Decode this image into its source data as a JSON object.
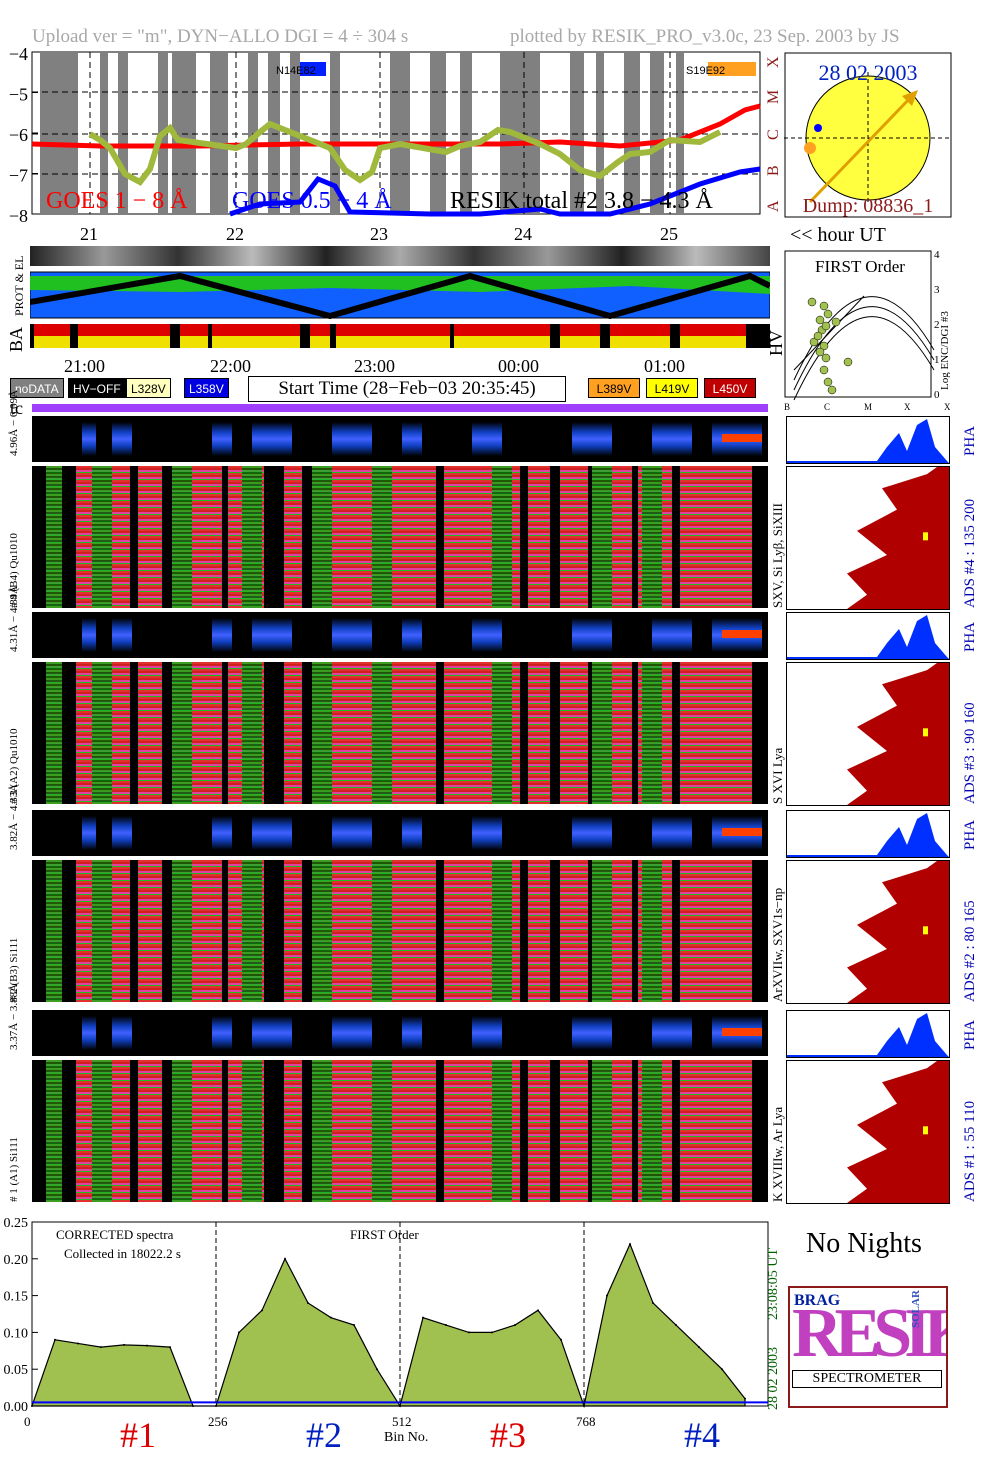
{
  "header": {
    "left": "Upload ver = \"m\", DYN−ALLO DGI =   4 ÷ 304 s",
    "right": "plotted by RESIK_PRO_v3.0c, 23 Sep. 2003 by JS"
  },
  "goes_panel": {
    "yticks": [
      "−4",
      "−5",
      "−6",
      "−7",
      "−8"
    ],
    "class_letters": [
      "X",
      "M",
      "C",
      "B",
      "A"
    ],
    "legend_goes_long": "GOES 1 − 8 Å",
    "legend_goes_short": "GOES 0.5 − 4 Å",
    "legend_resik": "RESIK total #2  3.8 − 4.3 Å",
    "region_left": "N14E82",
    "region_right": "S19E92",
    "colors": {
      "goes_long": "#ff0000",
      "goes_short": "#0000ff",
      "resik": "#a0b83c",
      "night": "#808080"
    }
  },
  "sun_panel": {
    "date": "28 02 2003",
    "dump": "Dump: 08836_1"
  },
  "orbit_axis": {
    "hour_ticks": [
      "21",
      "22",
      "23",
      "24",
      "25"
    ],
    "hour_label": "<< hour UT"
  },
  "prot_panel": {
    "label": "PROT & EL"
  },
  "ba_panel": {
    "label": "BA"
  },
  "hv_label": "HV",
  "time_axis": {
    "ticks": [
      "21:00",
      "22:00",
      "23:00",
      "00:00",
      "01:00"
    ]
  },
  "hv_legend": {
    "items": [
      {
        "text": "noDATA",
        "bg": "#808080",
        "fg": "#ffffff"
      },
      {
        "text": "HV−OFF",
        "bg": "#000000",
        "fg": "#ffffff"
      },
      {
        "text": "L328V",
        "bg": "#ffffc0",
        "fg": "#000000"
      },
      {
        "text": "L358V",
        "bg": "#0000e0",
        "fg": "#ffffff"
      }
    ],
    "items_right": [
      {
        "text": "L389V",
        "bg": "#ffa020",
        "fg": "#000000"
      },
      {
        "text": "L419V",
        "bg": "#ffff00",
        "fg": "#000000"
      },
      {
        "text": "L450V",
        "bg": "#c00000",
        "fg": "#ffffff"
      }
    ],
    "start_time": "Start Time (28−Feb−03 20:35:45)"
  },
  "tc_label": "tc",
  "first_order": {
    "title": "FIRST Order",
    "ylabel": "Log ENC/DGI #3",
    "yticks": [
      "4",
      "3",
      "2",
      "1",
      "0"
    ],
    "xticks": [
      "B",
      "C",
      "M",
      "X",
      "X10"
    ]
  },
  "channels": [
    {
      "pha_left": "4.96Å − 6.09Å",
      "left": "# 4 (B4) Qu1010",
      "line": "SXV, Si Lyβ, SiXIII",
      "ads": "ADS #4 :   135 200",
      "pha": "PHA"
    },
    {
      "pha_left": "4.31Å − 4.89Å",
      "left": "# 3 (A2) Qu1010",
      "line": "S XVI Lya",
      "ads": "ADS #3 :    90 160",
      "pha": "PHA"
    },
    {
      "pha_left": "3.82Å − 4.33Å",
      "left": "# 2 (B3) Si111",
      "line": "ArXVIIw, SXV1s−np",
      "ads": "ADS #2 :    80 165",
      "pha": "PHA"
    },
    {
      "pha_left": "3.37Å − 3.88Å",
      "left": "# 1 (A1) Si111",
      "line": "K XVIIIw, Ar Lya",
      "ads": "ADS #1 :    55 110",
      "pha": "PHA"
    }
  ],
  "spectrum": {
    "title": "CORRECTED spectra",
    "collected": "Collected in 18022.2 s",
    "order": "FIRST Order",
    "yticks": [
      "0.25",
      "0.20",
      "0.15",
      "0.10",
      "0.05",
      "0.00"
    ],
    "xticks": [
      "0",
      "256",
      "512",
      "768"
    ],
    "xlabel": "Bin No.",
    "right_time": "23:08:05 UT",
    "right_date": "28 02 2003",
    "channel_labels": [
      "#1",
      "#2",
      "#3",
      "#4"
    ],
    "colors": {
      "fill": "#a0c050",
      "line": "#000000",
      "pha": "#0000ff"
    }
  },
  "no_nights": "No Nights",
  "logo": {
    "big": "RESIK",
    "small_left": "BRAG",
    "small_right": "SOLAR",
    "bottom": "SPECTROMETER"
  },
  "chart_data": {
    "type": "line",
    "x": [
      0,
      32,
      64,
      96,
      128,
      160,
      192,
      224,
      256,
      288,
      320,
      352,
      384,
      416,
      448,
      480,
      512,
      544,
      576,
      608,
      640,
      672,
      704,
      736,
      768,
      800,
      832,
      864,
      896,
      928,
      960,
      992
    ],
    "ylim": [
      0,
      0.25
    ],
    "xlim": [
      0,
      1024
    ],
    "series": [
      {
        "values": [
          0.0,
          0.09,
          0.085,
          0.08,
          0.083,
          0.082,
          0.08,
          0.0,
          0.0,
          0.1,
          0.13,
          0.2,
          0.14,
          0.12,
          0.11,
          0.05,
          0.0,
          0.12,
          0.11,
          0.1,
          0.1,
          0.11,
          0.13,
          0.09,
          0.0,
          0.15,
          0.22,
          0.14,
          0.11,
          0.08,
          0.05,
          0.01
        ]
      }
    ]
  }
}
